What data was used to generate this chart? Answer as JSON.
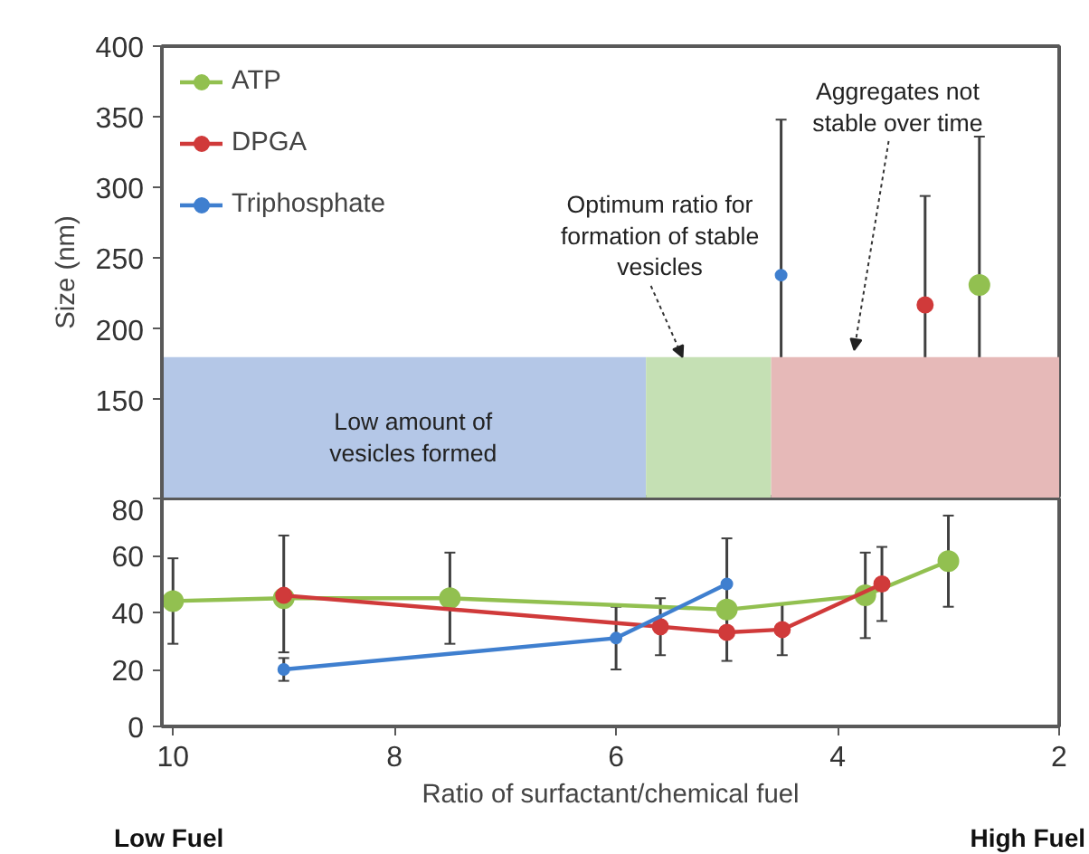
{
  "chart_data": [
    {
      "type": "line",
      "xlim": [
        10.1,
        2
      ],
      "ylim": [
        80,
        400
      ],
      "yticks": [
        150,
        200,
        250,
        300,
        350,
        400
      ],
      "tick_labels": "y",
      "ylabel": "Size (nm)",
      "legend": "top left",
      "grid": false,
      "annotations": [
        "Low amount of vesicles formed",
        {
          "text": "Optimum ratio for formation of stable vesicles",
          "x": 5.4,
          "y": 180
        },
        {
          "text": "Aggregates not stable over time",
          "x": 3.85,
          "y": 185
        }
      ],
      "series": [
        {
          "type": "area",
          "color": "#b4c7e7",
          "x": [
            10.1,
            5.73
          ],
          "values": [
            180,
            180
          ]
        },
        {
          "type": "area",
          "color": "#c5e0b4",
          "x": [
            5.73,
            4.6
          ],
          "values": [
            180,
            180
          ]
        },
        {
          "type": "area",
          "color": "#e6b9b8",
          "x": [
            4.6,
            2
          ],
          "values": [
            180,
            180
          ]
        },
        {
          "name": "ATP",
          "color": "#92c050",
          "marker": "circle",
          "x": [
            2.72
          ],
          "values": [
            231
          ],
          "errors": [
            105
          ]
        },
        {
          "name": "DPGA",
          "color": "#d03a3a",
          "marker": "circle",
          "x": [
            3.21
          ],
          "values": [
            217
          ],
          "errors": [
            77
          ]
        },
        {
          "name": "Triphosphate",
          "color": "#3f7fcf",
          "marker": "circle",
          "x": [
            4.51
          ],
          "values": [
            238
          ],
          "errors": [
            110
          ]
        }
      ]
    },
    {
      "type": "line",
      "xlim": [
        10.1,
        2
      ],
      "ylim": [
        0,
        80
      ],
      "xticks": [
        10,
        8,
        6,
        4,
        2
      ],
      "yticks": [
        0,
        20,
        40,
        60,
        80
      ],
      "xlabel": "Ratio of surfactant/chemical fuel",
      "grid": false,
      "annotations": [
        "Low Fuel",
        "High Fuel"
      ],
      "series": [
        {
          "color": "#92c050",
          "marker": "circle",
          "x": [
            10,
            9,
            7.5,
            5,
            3.75,
            3
          ],
          "values": [
            44,
            45,
            45,
            41,
            46,
            58
          ],
          "errors": [
            15,
            null,
            16,
            null,
            15,
            16
          ]
        },
        {
          "color": "#d03a3a",
          "marker": "circle",
          "x": [
            9,
            5.6,
            5,
            4.5,
            3.6
          ],
          "values": [
            46,
            35,
            33,
            34,
            50
          ],
          "errors": [
            [
              26,
              67
            ],
            10,
            10,
            9,
            13
          ]
        },
        {
          "color": "#3f7fcf",
          "marker": "circle",
          "x": [
            9,
            6,
            5
          ],
          "values": [
            20,
            31,
            50
          ],
          "errors": [
            4,
            11,
            16
          ]
        }
      ]
    }
  ]
}
